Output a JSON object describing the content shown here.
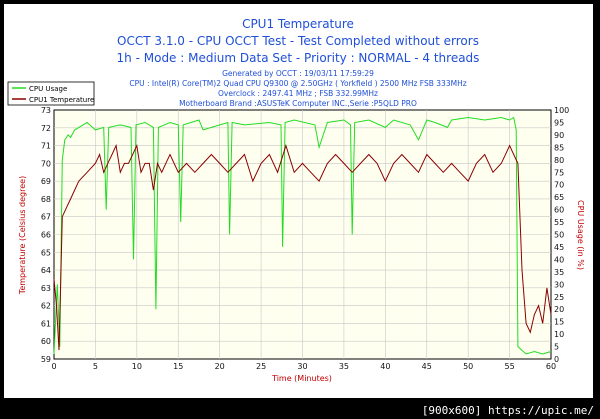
{
  "watermark": "[900x600] https://upic.me/",
  "chart_data": {
    "type": "line",
    "title": "CPU1 Temperature",
    "subtitles": [
      "OCCT 3.1.0 - CPU OCCT Test - Test Completed without errors",
      "1h - Mode : Medium Data Set - Priority : NORMAL - 4 threads"
    ],
    "info_lines": [
      "Generated by OCCT : 19/03/11 17:59:29",
      "CPU : Intel(R) Core(TM)2 Quad CPU Q9300 @ 2.50GHz ( Yorkfield ) 2500 MHz FSB 333MHz",
      "Overclock : 2497.41 MHz ; FSB 332.99MHz",
      "Motherboard Brand :ASUSTeK Computer INC.,Serie :P5QLD PRO"
    ],
    "xlabel": "Time (Minutes)",
    "ylabel_left": "Temperature (Celsius degree)",
    "ylabel_right": "CPU Usage (in %)",
    "xlim": [
      0,
      60
    ],
    "ylim_left": [
      59,
      73
    ],
    "ylim_right": [
      0,
      100
    ],
    "x_ticks": [
      0,
      5,
      10,
      15,
      20,
      25,
      30,
      35,
      40,
      45,
      50,
      55,
      60
    ],
    "y_left_ticks": [
      59,
      60,
      61,
      62,
      63,
      64,
      65,
      66,
      67,
      68,
      69,
      70,
      71,
      72,
      73
    ],
    "y_right_ticks": [
      0,
      5,
      10,
      15,
      20,
      25,
      30,
      35,
      40,
      45,
      50,
      55,
      60,
      65,
      70,
      75,
      80,
      85,
      90,
      95,
      100
    ],
    "grid": true,
    "legend_position": "top-left",
    "colors": {
      "cpu_usage": "#22dd22",
      "cpu1_temperature": "#8b0000",
      "title": "#1f4fd6",
      "axis_label": "#c00000",
      "plot_bg": "#fffff0",
      "grid": "#c8c8c8"
    },
    "series": [
      {
        "name": "CPU Usage",
        "axis": "right",
        "x": [
          0,
          0.4,
          0.7,
          1.0,
          1.3,
          1.7,
          2.0,
          2.5,
          3.0,
          4.0,
          5.0,
          6.0,
          6.3,
          6.6,
          8.0,
          9.3,
          9.6,
          9.9,
          11.0,
          12.0,
          12.3,
          12.6,
          14.0,
          15.0,
          15.3,
          15.6,
          17.5,
          18.0,
          20.0,
          21.0,
          21.2,
          21.5,
          23.0,
          26.0,
          27.4,
          27.6,
          27.9,
          29.0,
          31.5,
          32.0,
          33.0,
          35.0,
          35.8,
          36.0,
          36.3,
          38.0,
          40.0,
          41.0,
          43.0,
          44.0,
          45.0,
          46.0,
          47.5,
          48.0,
          50.0,
          52.0,
          54.0,
          55.0,
          55.5,
          55.8,
          56.0,
          57.0,
          58.0,
          59.0,
          60.0
        ],
        "values": [
          2,
          30,
          5,
          80,
          88,
          90,
          89,
          92,
          93,
          95,
          92,
          93,
          60,
          93,
          94,
          93,
          40,
          94,
          95,
          93,
          20,
          93,
          95,
          94,
          55,
          94,
          96,
          92,
          94,
          95,
          50,
          95,
          94,
          95,
          94,
          45,
          95,
          96,
          94,
          85,
          95,
          96,
          94,
          50,
          95,
          96,
          93,
          96,
          94,
          88,
          96,
          95,
          93,
          96,
          97,
          96,
          97,
          96,
          97,
          92,
          5,
          2,
          3,
          2,
          3
        ]
      },
      {
        "name": "CPU1 Temperature",
        "axis": "left",
        "x": [
          0,
          0.3,
          0.6,
          1.0,
          1.5,
          2.0,
          2.5,
          3.0,
          4.0,
          5.0,
          5.5,
          6.0,
          6.5,
          7.0,
          7.5,
          8.0,
          8.5,
          9.0,
          9.5,
          10.0,
          10.5,
          11.0,
          11.5,
          12.0,
          12.5,
          13.0,
          13.5,
          14.0,
          15.0,
          16.0,
          17.0,
          18.0,
          19.0,
          20.0,
          21.0,
          22.0,
          23.0,
          24.0,
          25.0,
          26.0,
          27.0,
          28.0,
          29.0,
          30.0,
          31.0,
          32.0,
          33.0,
          34.0,
          35.0,
          36.0,
          37.0,
          38.0,
          39.0,
          40.0,
          41.0,
          42.0,
          43.0,
          44.0,
          45.0,
          46.0,
          47.0,
          48.0,
          49.0,
          50.0,
          51.0,
          52.0,
          53.0,
          54.0,
          55.0,
          55.5,
          56.0,
          56.5,
          57.0,
          57.5,
          58.0,
          58.5,
          59.0,
          59.5,
          60.0
        ],
        "values": [
          63.5,
          62.0,
          59.5,
          67.0,
          67.5,
          68.0,
          68.5,
          69.0,
          69.5,
          70.0,
          70.5,
          69.5,
          70.0,
          70.5,
          71.0,
          69.5,
          70.0,
          70.0,
          70.5,
          71.0,
          69.5,
          70.0,
          70.0,
          68.5,
          70.0,
          69.5,
          70.0,
          70.5,
          69.5,
          70.0,
          69.5,
          70.0,
          70.5,
          70.0,
          69.5,
          70.0,
          70.5,
          69.0,
          70.0,
          70.5,
          69.5,
          71.0,
          69.5,
          70.0,
          69.5,
          69.0,
          70.0,
          70.5,
          70.0,
          69.5,
          70.0,
          70.5,
          70.0,
          69.0,
          70.0,
          70.5,
          70.0,
          69.5,
          70.5,
          70.0,
          69.5,
          70.0,
          69.5,
          69.0,
          70.0,
          70.5,
          69.5,
          70.0,
          71.0,
          70.5,
          70.0,
          64.0,
          61.0,
          60.5,
          61.5,
          62.0,
          61.0,
          63.0,
          61.5
        ]
      }
    ]
  }
}
